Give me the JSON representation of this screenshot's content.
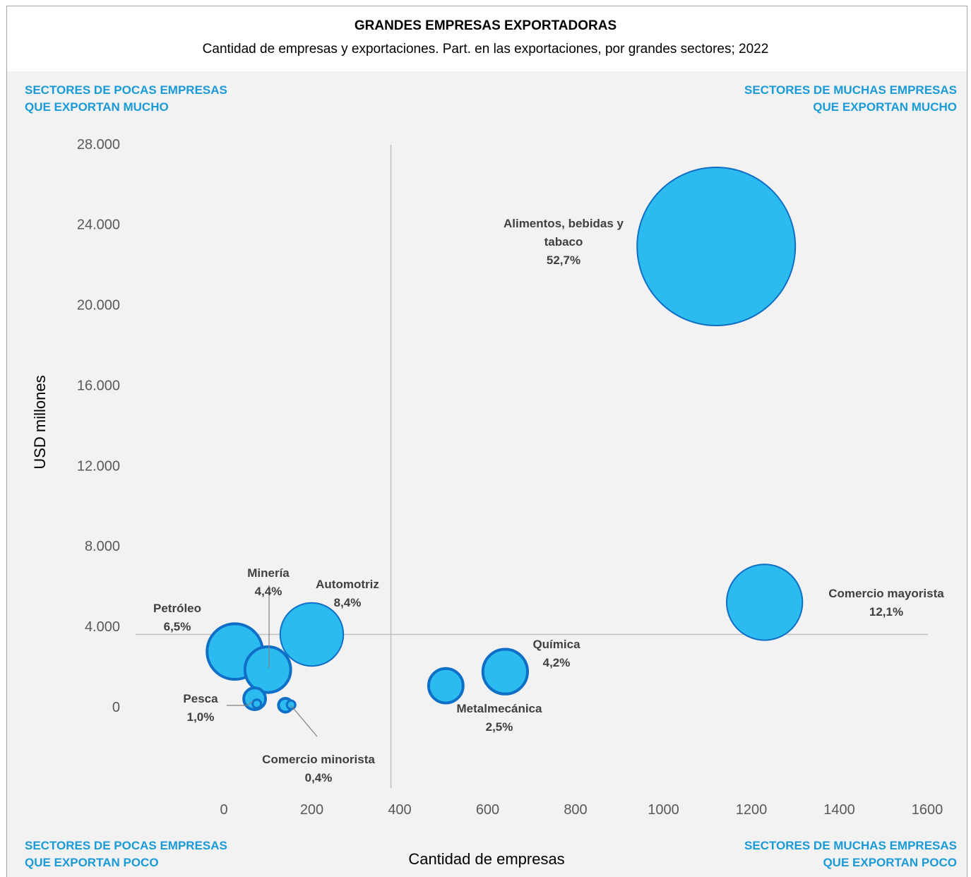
{
  "title": "GRANDES EMPRESAS EXPORTADORAS",
  "subtitle": "Cantidad de empresas y exportaciones. Part. en las exportaciones, por grandes sectores; 2022",
  "quadrants": {
    "top_left": [
      "SECTORES DE POCAS EMPRESAS",
      "QUE EXPORTAN MUCHO"
    ],
    "top_right": [
      "SECTORES DE MUCHAS EMPRESAS",
      "QUE EXPORTAN MUCHO"
    ],
    "bottom_left": [
      "SECTORES DE POCAS EMPRESAS",
      "QUE EXPORTAN POCO"
    ],
    "bottom_right": [
      "SECTORES DE MUCHAS EMPRESAS",
      "QUE EXPORTAN POCO"
    ]
  },
  "colors": {
    "bubble_fill": "#2bbbef",
    "bubble_stroke": "#0f6fc6",
    "quadrant_text": "#1a9ad6",
    "divider": "#bfbfbf"
  },
  "chart_data": {
    "type": "scatter",
    "subtype": "bubble",
    "title": "GRANDES EMPRESAS EXPORTADORAS",
    "subtitle": "Cantidad de empresas y exportaciones. Part. en las exportaciones, por grandes sectores; 2022",
    "xlabel": "Cantidad de empresas",
    "ylabel": "USD millones",
    "xlim": [
      -200,
      1600
    ],
    "ylim": [
      -3800,
      28000
    ],
    "x_ticks": [
      "0",
      "200",
      "400",
      "600",
      "800",
      "1000",
      "1200",
      "1400",
      "1600"
    ],
    "y_ticks": [
      "0",
      "4.000",
      "8.000",
      "12.000",
      "16.000",
      "20.000",
      "24.000",
      "28.000"
    ],
    "grid": false,
    "quadrant_dividers": {
      "x": 380,
      "y": 3600
    },
    "points": [
      {
        "name": "Alimentos, bebidas y tabaco",
        "share": "52,7%",
        "share_value": 52.7,
        "x": 1120,
        "y": 22900
      },
      {
        "name": "Comercio mayorista",
        "share": "12,1%",
        "share_value": 12.1,
        "x": 1230,
        "y": 5200
      },
      {
        "name": "Automotriz",
        "share": "8,4%",
        "share_value": 8.4,
        "x": 200,
        "y": 3600
      },
      {
        "name": "Petróleo",
        "share": "6,5%",
        "share_value": 6.5,
        "x": 25,
        "y": 2750
      },
      {
        "name": "Minería",
        "share": "4,4%",
        "share_value": 4.4,
        "x": 100,
        "y": 1850
      },
      {
        "name": "Química",
        "share": "4,2%",
        "share_value": 4.2,
        "x": 640,
        "y": 1750
      },
      {
        "name": "Metalmecánica",
        "share": "2,5%",
        "share_value": 2.5,
        "x": 505,
        "y": 1050
      },
      {
        "name": "Pesca",
        "share": "1,0%",
        "share_value": 1.0,
        "x": 70,
        "y": 400
      },
      {
        "name": "Comercio minorista",
        "share": "0,4%",
        "share_value": 0.4,
        "x": 140,
        "y": 80
      }
    ],
    "extra_points": [
      {
        "x": 75,
        "y": 150
      },
      {
        "x": 153,
        "y": 100
      }
    ]
  }
}
